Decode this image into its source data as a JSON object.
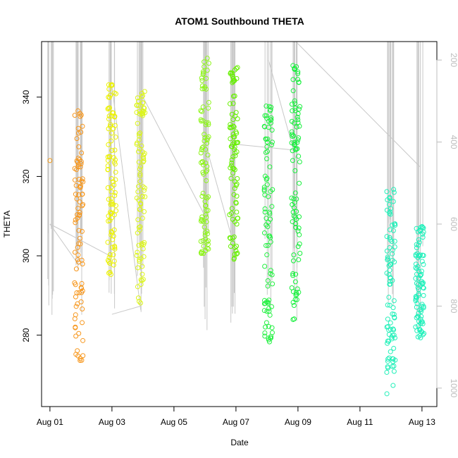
{
  "chart_data": {
    "type": "scatter",
    "title": "ATOM1 Southbound THETA",
    "xlabel": "Date",
    "ylabel": "THETA",
    "x_tick_labels": [
      "Aug 01",
      "Aug 03",
      "Aug 05",
      "Aug 07",
      "Aug 09",
      "Aug 11",
      "Aug 13"
    ],
    "y_ticks": [
      280,
      300,
      320,
      340
    ],
    "y_range": [
      262,
      354
    ],
    "x_range_days": [
      -0.27,
      12.48
    ],
    "right_axis_ticks": [
      200,
      400,
      600,
      800,
      1000
    ],
    "right_axis_range": [
      155,
      1045
    ],
    "right_axis_color": "#bdbdbd",
    "grid": false,
    "legend": "none",
    "clusters": [
      {
        "date": "Aug 01",
        "day": 0.0,
        "theta_min": 324,
        "theta_max": 324,
        "color": "#f39c1a"
      },
      {
        "date": "Aug 01",
        "day": 0.93,
        "theta_min": 272,
        "theta_max": 337,
        "color": "#f7971d"
      },
      {
        "date": "Aug 03",
        "day": 2.0,
        "theta_min": 295,
        "theta_max": 345,
        "color": "#ecf200"
      },
      {
        "date": "Aug 03",
        "day": 2.93,
        "theta_min": 288,
        "theta_max": 342,
        "color": "#dcf51a"
      },
      {
        "date": "Aug 06",
        "day": 5.0,
        "theta_min": 300,
        "theta_max": 350,
        "color": "#8ef51a"
      },
      {
        "date": "Aug 06",
        "day": 5.93,
        "theta_min": 299,
        "theta_max": 349,
        "color": "#66f000"
      },
      {
        "date": "Aug 08",
        "day": 7.05,
        "theta_min": 277,
        "theta_max": 340,
        "color": "#22f040"
      },
      {
        "date": "Aug 08",
        "day": 7.93,
        "theta_min": 283,
        "theta_max": 348,
        "color": "#16f03c"
      },
      {
        "date": "Aug 12",
        "day": 11.0,
        "theta_min": 265,
        "theta_max": 317,
        "color": "#22f0b9"
      },
      {
        "date": "Aug 12",
        "day": 11.93,
        "theta_min": 279,
        "theta_max": 308,
        "color": "#1ef0ba"
      }
    ]
  }
}
